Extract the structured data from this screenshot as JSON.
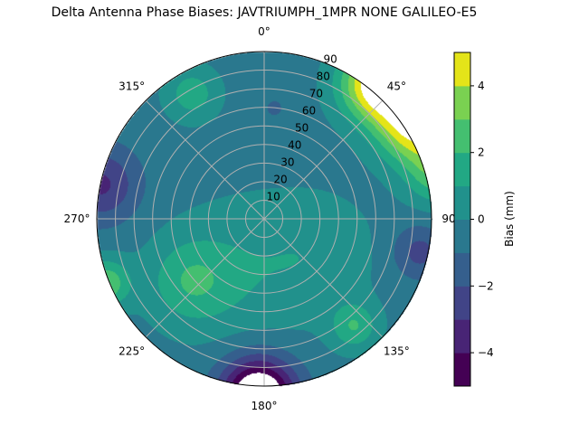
{
  "chart_data": {
    "type": "heatmap",
    "subtype": "polar-contourf",
    "title": "Delta Antenna Phase Biases: JAVTRIUMPH_1MPR NONE GALILEO-E5",
    "theta_ticks": [
      "0°",
      "45°",
      "90°",
      "135°",
      "180°",
      "225°",
      "270°",
      "315°"
    ],
    "theta_tick_values": [
      0,
      45,
      90,
      135,
      180,
      225,
      270,
      315
    ],
    "r_ticks": [
      "10",
      "20",
      "30",
      "40",
      "50",
      "60",
      "70",
      "80",
      "90"
    ],
    "r_tick_values": [
      10,
      20,
      30,
      40,
      50,
      60,
      70,
      80,
      90
    ],
    "r_range": [
      0,
      90
    ],
    "grid": true,
    "colorbar": {
      "label": "Bias (mm)",
      "levels": [
        -5,
        -4,
        -3,
        -2,
        -1,
        0,
        1,
        2,
        3,
        4,
        5
      ],
      "ticks": [
        "−4",
        "−2",
        "0",
        "2",
        "4"
      ],
      "tick_values": [
        -4,
        -2,
        0,
        2,
        4
      ],
      "colors": [
        "#440154",
        "#482475",
        "#414487",
        "#355f8d",
        "#2a788e",
        "#21918c",
        "#22a884",
        "#44bf70",
        "#7ad151",
        "#e4e419"
      ]
    },
    "base_value": -0.4,
    "features": [
      {
        "azimuth": 40,
        "zenith": 95,
        "bias": 6.5,
        "spread": 14
      },
      {
        "azimuth": 58,
        "zenith": 95,
        "bias": 5.5,
        "spread": 14
      },
      {
        "azimuth": 75,
        "zenith": 97,
        "bias": 3.0,
        "spread": 12
      },
      {
        "azimuth": 230,
        "zenith": 52,
        "bias": 2.0,
        "spread": 16
      },
      {
        "azimuth": 200,
        "zenith": 30,
        "bias": 1.1,
        "spread": 28
      },
      {
        "azimuth": 120,
        "zenith": 35,
        "bias": 0.9,
        "spread": 22
      },
      {
        "azimuth": 140,
        "zenith": 75,
        "bias": 2.3,
        "spread": 9
      },
      {
        "azimuth": 330,
        "zenith": 78,
        "bias": 2.0,
        "spread": 10
      },
      {
        "azimuth": 248,
        "zenith": 92,
        "bias": 3.2,
        "spread": 9
      },
      {
        "azimuth": 182,
        "zenith": 95,
        "bias": -7.0,
        "spread": 14
      },
      {
        "azimuth": 282,
        "zenith": 90,
        "bias": -2.8,
        "spread": 14
      },
      {
        "azimuth": 102,
        "zenith": 85,
        "bias": -2.0,
        "spread": 10
      },
      {
        "azimuth": 5,
        "zenith": 60,
        "bias": -0.8,
        "spread": 5
      }
    ]
  }
}
